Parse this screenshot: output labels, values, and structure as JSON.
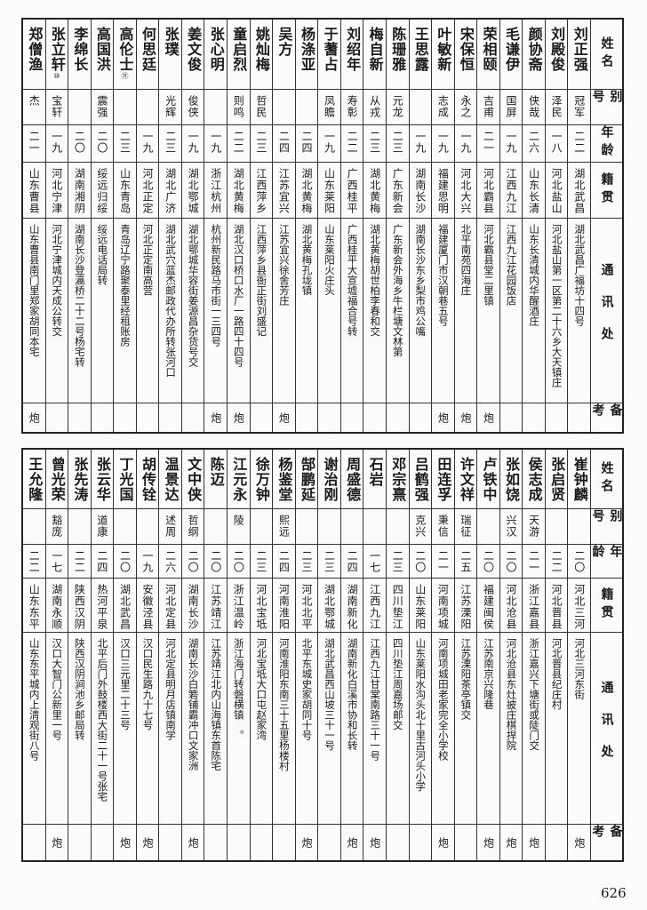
{
  "headers": [
    "姓名",
    "别号",
    "年龄",
    "籍贯",
    "通讯处",
    "备考"
  ],
  "table_top": [
    {
      "name": "刘正强",
      "alias": "冠军",
      "age": "二二",
      "native": "湖北武昌",
      "address": "湖北武昌广福坊十四号",
      "remark": ""
    },
    {
      "name": "刘殿俊",
      "alias": "泽民",
      "age": "一八",
      "native": "河北盐山",
      "address": "河北盐山第一区第二十六乡大天镇庄",
      "remark": ""
    },
    {
      "name": "颜协斋",
      "alias": "侠哉",
      "age": "二六",
      "native": "山东长清",
      "address": "山东长清城内华醒酒庄",
      "remark": ""
    },
    {
      "name": "毛谦伊",
      "alias": "国屏",
      "age": "一九",
      "native": "江西九江",
      "address": "江西九江花园饭店",
      "remark": ""
    },
    {
      "name": "荣相颐",
      "alias": "吉甫",
      "age": "二一",
      "native": "河北霸县",
      "address": "河北霸县堂二里镇",
      "remark": "炮"
    },
    {
      "name": "宋保恒",
      "alias": "永之",
      "age": "一九",
      "native": "河北大兴",
      "address": "北平南苑四海庄",
      "remark": "炮"
    },
    {
      "name": "叶敏新",
      "alias": "志成",
      "age": "一九",
      "native": "福建思明",
      "address": "福建厦门市汉朝巷五号",
      "remark": "炮"
    },
    {
      "name": "王思露",
      "alias": "",
      "age": "一九",
      "native": "湖南长沙",
      "address": "湖南长沙东乡梨市鸡公嘴",
      "remark": ""
    },
    {
      "name": "陈珊雅",
      "alias": "元龙",
      "age": "二三",
      "native": "广东新会",
      "address": "广东新会外海乡牛栏塘文林第",
      "remark": ""
    },
    {
      "name": "梅自新",
      "alias": "从戎",
      "age": "二三",
      "native": "湖北黄梅",
      "address": "湖北黄梅胡世柏李春和交",
      "remark": ""
    },
    {
      "name": "刘绍年",
      "alias": "寿彰",
      "age": "二二",
      "native": "广西桂平",
      "address": "广西桂平大宣墟福合号转",
      "remark": ""
    },
    {
      "name": "于蓍占",
      "alias": "凤瞻",
      "age": "一九",
      "native": "山东莱阳",
      "address": "山东莱阳火庄头",
      "remark": ""
    },
    {
      "name": "杨涤亚",
      "alias": "",
      "age": "二四",
      "native": "湖北黄梅",
      "address": "湖北黄梅孔垅镇",
      "remark": ""
    },
    {
      "name": "吴方",
      "alias": "",
      "age": "二四",
      "native": "江苏宜兴",
      "address": "江苏宜兴徐舍芳庄",
      "remark": "炮"
    },
    {
      "name": "姚灿梅",
      "alias": "哲民",
      "age": "二三",
      "native": "江西萍乡",
      "address": "江西萍乡县衙正街刘盛记",
      "remark": ""
    },
    {
      "name": "童启烈",
      "alias": "则鸣",
      "age": "二二",
      "native": "湖北黄梅",
      "address": "湖北汉口桥口水厂一路四十四号",
      "remark": "炮"
    },
    {
      "name": "张心明",
      "alias": "",
      "age": "一九",
      "native": "浙江杭州",
      "address": "杭州新民路马市街一三四号",
      "remark": "炮"
    },
    {
      "name": "姜文俊",
      "alias": "俊侠",
      "age": "一九",
      "native": "湖北鄂城",
      "address": "湖北鄂城华容街姜源昌杂货号交",
      "remark": ""
    },
    {
      "name": "张璞",
      "alias": "光辉",
      "age": "二三",
      "native": "湖北广济",
      "address": "湖北武穴蓝杰邮政代办所转张河口",
      "remark": ""
    },
    {
      "name": "何思廷",
      "alias": "",
      "age": "一九",
      "native": "河北正定",
      "address": "河北正定南高营",
      "remark": ""
    },
    {
      "name": "高伦士",
      "mark": "⑪",
      "alias": "",
      "age": "二三",
      "native": "山东青岛",
      "address": "青岛辽宁路聚泰里经租账房",
      "remark": ""
    },
    {
      "name": "高国洪",
      "alias": "震强",
      "age": "二〇",
      "native": "绥远归绥",
      "address": "绥远电话局转",
      "remark": ""
    },
    {
      "name": "李绵长",
      "alias": "",
      "age": "二〇",
      "native": "湖南湘阴",
      "address": "湖南长沙登瀛桥二十二号杨宅转",
      "remark": ""
    },
    {
      "name": "张立轩",
      "mark": "⑩",
      "alias": "宝轩",
      "age": "一九",
      "native": "河北宁津",
      "address": "河北宁津城内天成公转交",
      "remark": ""
    },
    {
      "name": "郑僧渔",
      "alias": "杰",
      "age": "二一",
      "native": "山东曹县",
      "address": "山东曹县南门里郑家胡同本宅",
      "remark": "炮"
    }
  ],
  "table_bottom": [
    {
      "name": "崔钟麟",
      "alias": "",
      "age": "二〇",
      "native": "河北三河",
      "address": "河北三河东街",
      "remark": "炮"
    },
    {
      "name": "张启贤",
      "alias": "",
      "age": "二二",
      "native": "河北晋县",
      "address": "河北晋县纪庄村",
      "remark": ""
    },
    {
      "name": "侯志成",
      "alias": "天游",
      "age": "二一",
      "native": "浙江嘉县",
      "address": "浙江嘉兴下塘街或陡门交",
      "remark": "炮"
    },
    {
      "name": "张如饶",
      "alias": "兴汉",
      "age": "二〇",
      "native": "河北沧县",
      "address": "河北沧县东灶披庄棋捍院",
      "remark": "炮"
    },
    {
      "name": "卢铁中",
      "alias": "",
      "age": "二〇",
      "native": "福建闽侯",
      "address": "江苏南京兴隆巷",
      "remark": "炮"
    },
    {
      "name": "许文祥",
      "alias": "瑞征",
      "age": "二五",
      "native": "江苏溧阳",
      "address": "江苏溧阳茶亭镇交",
      "remark": ""
    },
    {
      "name": "田连孚",
      "alias": "秉信",
      "age": "二一",
      "native": "河南项城",
      "address": "河南项城田老家完全小学校",
      "remark": "炮"
    },
    {
      "name": "吕鹤强",
      "alias": "克兴",
      "age": "二〇",
      "native": "山东莱阳",
      "address": "山东莱阳水沟头北十里古河头小学",
      "remark": ""
    },
    {
      "name": "邓宗熹",
      "alias": "",
      "age": "二三",
      "native": "四川垫江",
      "address": "四川垫江周嘉场邮交",
      "remark": ""
    },
    {
      "name": "石岩",
      "alias": "",
      "age": "一七",
      "native": "江西九江",
      "address": "江西九江甘棠南路三十一号",
      "remark": "炮"
    },
    {
      "name": "周盛德",
      "alias": "",
      "age": "二四",
      "native": "湖南新化",
      "address": "湖南新化白溪市协和长转",
      "remark": "炮"
    },
    {
      "name": "谢治刚",
      "alias": "",
      "age": "二三",
      "native": "湖北鄂城",
      "address": "湖北武昌西山坡三十一号",
      "remark": ""
    },
    {
      "name": "郜鹏延",
      "alias": "",
      "age": "二三",
      "native": "河北北平",
      "address": "北平东城史家胡同十号",
      "remark": "炮"
    },
    {
      "name": "杨鉴堂",
      "alias": "熙远",
      "age": "二四",
      "native": "河南淮阳",
      "address": "河南淮阳东南三十五里杨楼村",
      "remark": ""
    },
    {
      "name": "徐万钟",
      "alias": "",
      "age": "二三",
      "native": "河北宝坻",
      "address": "河北宝坻大口屯赵家湾",
      "remark": ""
    },
    {
      "name": "江元永",
      "alias": "陵",
      "age": "二〇",
      "native": "浙江温岭",
      "address": "浙江海门转磐横镇　。",
      "remark": ""
    },
    {
      "name": "陈迈",
      "alias": "",
      "age": "二〇",
      "native": "江苏靖江",
      "address": "江苏靖江北内山海镇东首陈宅",
      "remark": ""
    },
    {
      "name": "文中侠",
      "alias": "哲纲",
      "age": "二〇",
      "native": "湖南长沙",
      "address": "湖南长沙白箬铺霸冲口文家洲",
      "remark": "炮"
    },
    {
      "name": "温景达",
      "alias": "述周",
      "age": "二六",
      "native": "河北定县",
      "address": "河北定县明月店镇南学",
      "remark": ""
    },
    {
      "name": "胡传铨",
      "alias": "",
      "age": "一九",
      "native": "安徽泾县",
      "address": "汉口民生路九十七号",
      "remark": "炮"
    },
    {
      "name": "丁光国",
      "alias": "",
      "age": "二〇",
      "native": "湖北武昌",
      "address": "汉口三元里二十三号",
      "remark": "炮"
    },
    {
      "name": "张云华",
      "alias": "道康",
      "age": "二四",
      "native": "热河平泉",
      "address": "北平后门外鼓楼西大街二十一号张宅",
      "remark": ""
    },
    {
      "name": "张先涛",
      "alias": "",
      "age": "二二",
      "native": "陕西汉阴",
      "address": "陕西汉阴涧池乡邮局转",
      "remark": ""
    },
    {
      "name": "曾光荣",
      "alias": "豁庞",
      "age": "一七",
      "native": "湖南永顺",
      "address": "汉口大智门公新里一号",
      "remark": "炮"
    },
    {
      "name": "王允隆",
      "alias": "",
      "age": "二二",
      "native": "山东东平",
      "address": "山东东平城内上清观街八号",
      "remark": ""
    }
  ],
  "page_number": "626"
}
